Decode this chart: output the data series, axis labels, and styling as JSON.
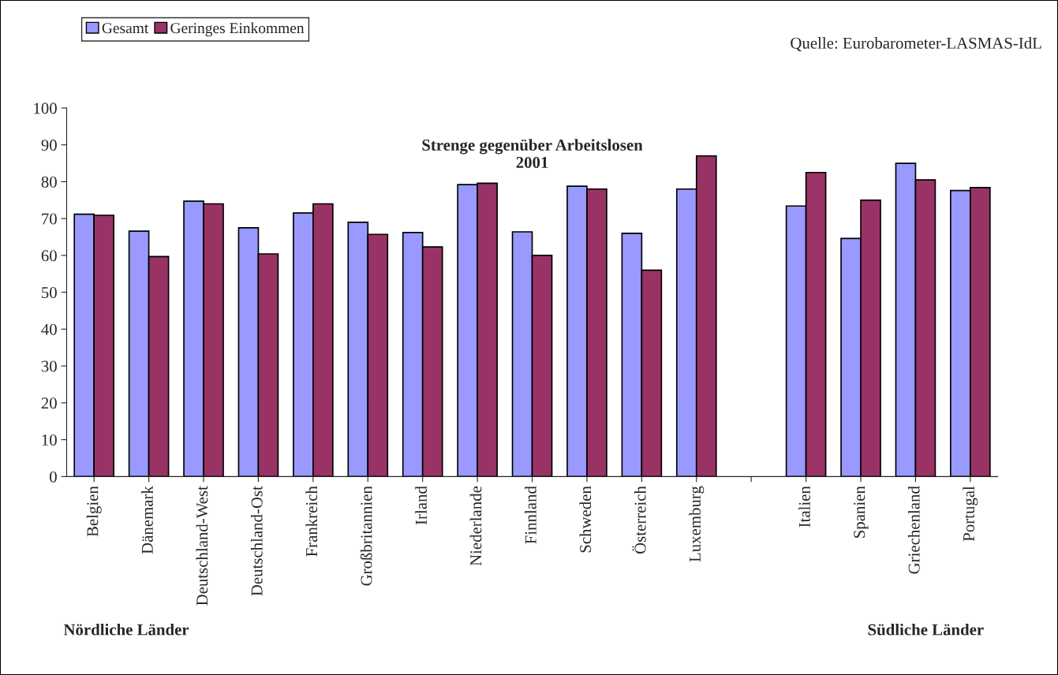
{
  "chart_data": {
    "type": "bar",
    "title": "Strenge gegenüber Arbeitslosen\n2001",
    "categories": [
      "Belgien",
      "Dänemark",
      "Deutschland-West",
      "Deutschland-Ost",
      "Frankreich",
      "Großbritannien",
      "Irland",
      "Niederlande",
      "Finnland",
      "Schweden",
      "Österreich",
      "Luxemburg",
      null,
      "Italien",
      "Spanien",
      "Griechenland",
      "Portugal"
    ],
    "series": [
      {
        "name": "Gesamt",
        "color": "#9999ff",
        "values": [
          71.2,
          66.6,
          74.7,
          67.5,
          71.5,
          69.0,
          66.2,
          79.2,
          66.4,
          78.8,
          66.0,
          78.0,
          null,
          73.4,
          64.6,
          85.0,
          77.6
        ]
      },
      {
        "name": "Geringes Einkommen",
        "color": "#993366",
        "values": [
          70.9,
          59.7,
          74.0,
          60.4,
          74.0,
          65.7,
          62.3,
          79.6,
          60.0,
          78.0,
          56.0,
          87.0,
          null,
          82.5,
          75.0,
          80.5,
          78.4
        ]
      }
    ],
    "ylim": [
      0,
      100
    ],
    "yticks": [
      0,
      10,
      20,
      30,
      40,
      50,
      60,
      70,
      80,
      90,
      100
    ],
    "legend": "top left",
    "grid": false,
    "annotations": [
      "Quelle: Eurobarometer-LASMAS-IdL",
      "Nördliche Länder",
      "Südliche Länder"
    ]
  }
}
